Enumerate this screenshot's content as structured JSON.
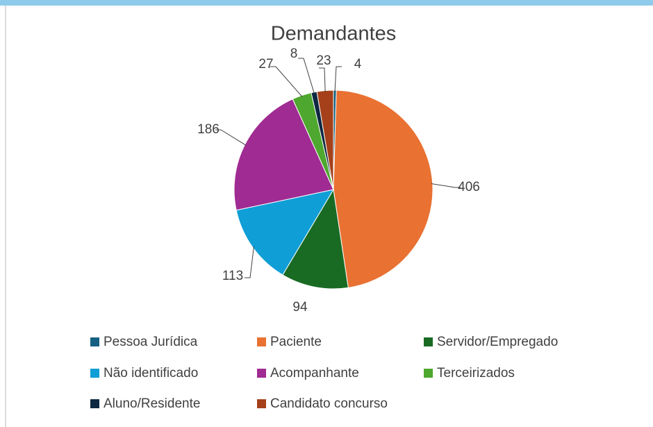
{
  "chart_data": {
    "type": "pie",
    "title": "Demandantes",
    "categories": [
      "Pessoa Jurídica",
      "Paciente",
      "Servidor/Empregado",
      "Não identificado",
      "Acompanhante",
      "Terceirizados",
      "Aluno/Residente",
      "Candidato concurso"
    ],
    "values": [
      4,
      406,
      94,
      113,
      186,
      27,
      8,
      23
    ],
    "colors": [
      "#156082",
      "#e97132",
      "#196b24",
      "#0f9ed5",
      "#a02b93",
      "#4ea72e",
      "#0e2841",
      "#a5401a"
    ],
    "legend": "bottom"
  }
}
